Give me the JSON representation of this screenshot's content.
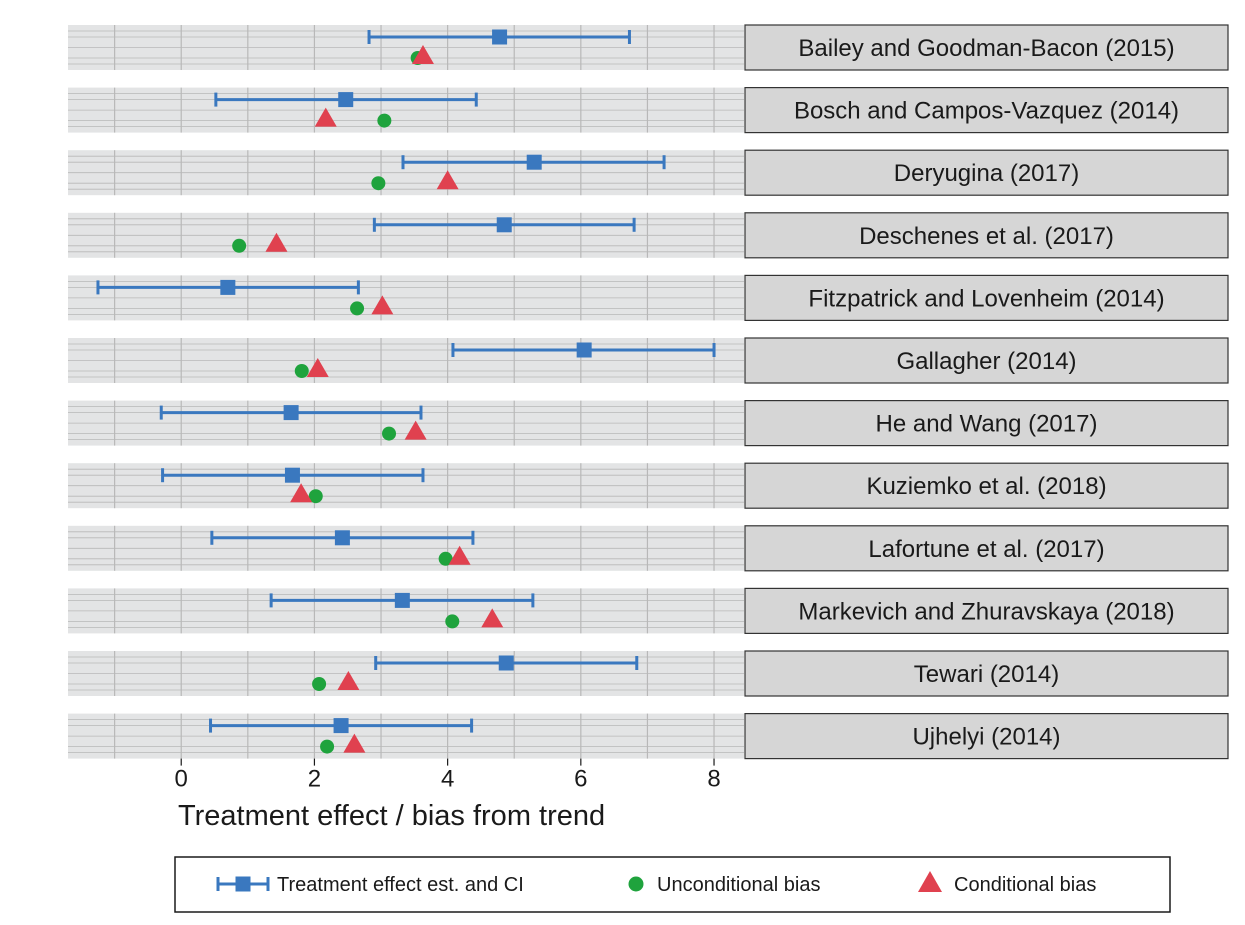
{
  "chart_data": {
    "type": "scatter",
    "xlabel": "Treatment effect / bias from trend",
    "ylabel": "",
    "xlim": [
      -1.7,
      8.45
    ],
    "xticks": [
      0,
      2,
      4,
      6,
      8
    ],
    "xgrid_minor": [
      -1,
      1,
      3,
      5,
      7
    ],
    "grid": true,
    "legend_position": "bottom",
    "colors": {
      "estimate": "#3a78bf",
      "unconditional": "#1fa33d",
      "conditional": "#e0414f",
      "panel_bg": "#e3e4e5",
      "strip_bg": "#d6d6d6",
      "grid": "#b8b8b8"
    },
    "legend": [
      {
        "key": "estimate",
        "label": "Treatment effect est. and CI",
        "marker": "square-errorbar"
      },
      {
        "key": "unconditional",
        "label": "Unconditional bias",
        "marker": "circle"
      },
      {
        "key": "conditional",
        "label": "Conditional bias",
        "marker": "triangle"
      }
    ],
    "studies": [
      {
        "label": "Bailey and Goodman-Bacon (2015)",
        "estimate": 4.78,
        "ci_low": 2.82,
        "ci_high": 6.73,
        "unconditional": 3.55,
        "conditional": 3.63
      },
      {
        "label": "Bosch and Campos-Vazquez (2014)",
        "estimate": 2.47,
        "ci_low": 0.52,
        "ci_high": 4.43,
        "unconditional": 3.05,
        "conditional": 2.17
      },
      {
        "label": "Deryugina (2017)",
        "estimate": 5.3,
        "ci_low": 3.33,
        "ci_high": 7.25,
        "unconditional": 2.96,
        "conditional": 4.0
      },
      {
        "label": "Deschenes et al. (2017)",
        "estimate": 4.85,
        "ci_low": 2.9,
        "ci_high": 6.8,
        "unconditional": 0.87,
        "conditional": 1.43
      },
      {
        "label": "Fitzpatrick and Lovenheim (2014)",
        "estimate": 0.7,
        "ci_low": -1.25,
        "ci_high": 2.66,
        "unconditional": 2.64,
        "conditional": 3.02
      },
      {
        "label": "Gallagher (2014)",
        "estimate": 6.05,
        "ci_low": 4.08,
        "ci_high": 8.0,
        "unconditional": 1.81,
        "conditional": 2.05
      },
      {
        "label": "He and Wang (2017)",
        "estimate": 1.65,
        "ci_low": -0.3,
        "ci_high": 3.6,
        "unconditional": 3.12,
        "conditional": 3.52
      },
      {
        "label": "Kuziemko et al. (2018)",
        "estimate": 1.67,
        "ci_low": -0.28,
        "ci_high": 3.63,
        "unconditional": 2.02,
        "conditional": 1.8
      },
      {
        "label": "Lafortune et al. (2017)",
        "estimate": 2.42,
        "ci_low": 0.46,
        "ci_high": 4.38,
        "unconditional": 3.97,
        "conditional": 4.18
      },
      {
        "label": "Markevich and Zhuravskaya (2018)",
        "estimate": 3.32,
        "ci_low": 1.35,
        "ci_high": 5.28,
        "unconditional": 4.07,
        "conditional": 4.67
      },
      {
        "label": "Tewari (2014)",
        "estimate": 4.88,
        "ci_low": 2.92,
        "ci_high": 6.84,
        "unconditional": 2.07,
        "conditional": 2.51
      },
      {
        "label": "Ujhelyi (2014)",
        "estimate": 2.4,
        "ci_low": 0.44,
        "ci_high": 4.36,
        "unconditional": 2.19,
        "conditional": 2.6
      }
    ]
  }
}
